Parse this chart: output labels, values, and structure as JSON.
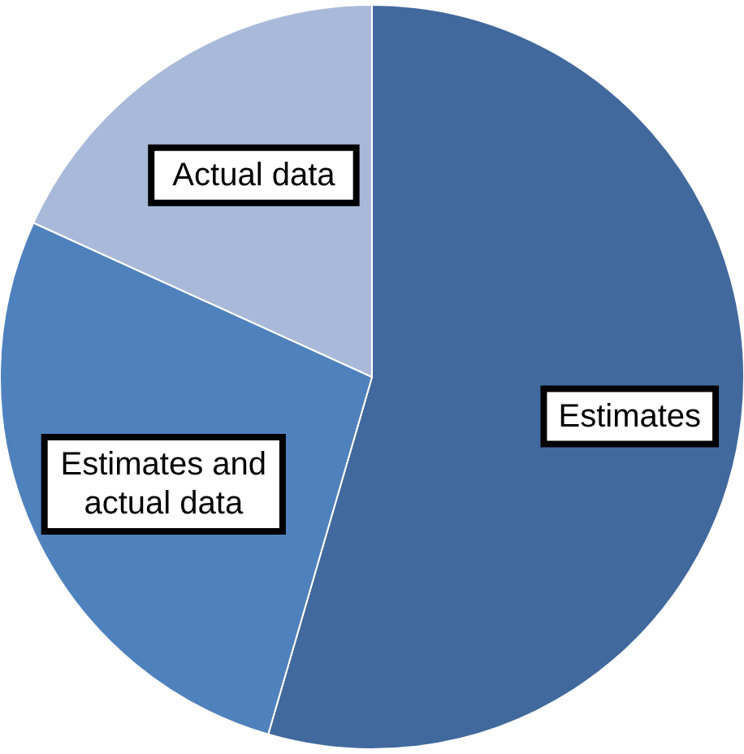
{
  "chart_data": {
    "type": "pie",
    "categories": [
      "Estimates",
      "Estimates and actual data",
      "Actual data"
    ],
    "values": [
      54.5,
      27.3,
      18.2
    ],
    "colors": [
      "#41699d",
      "#4f81bd",
      "#a9b9d9"
    ]
  }
}
